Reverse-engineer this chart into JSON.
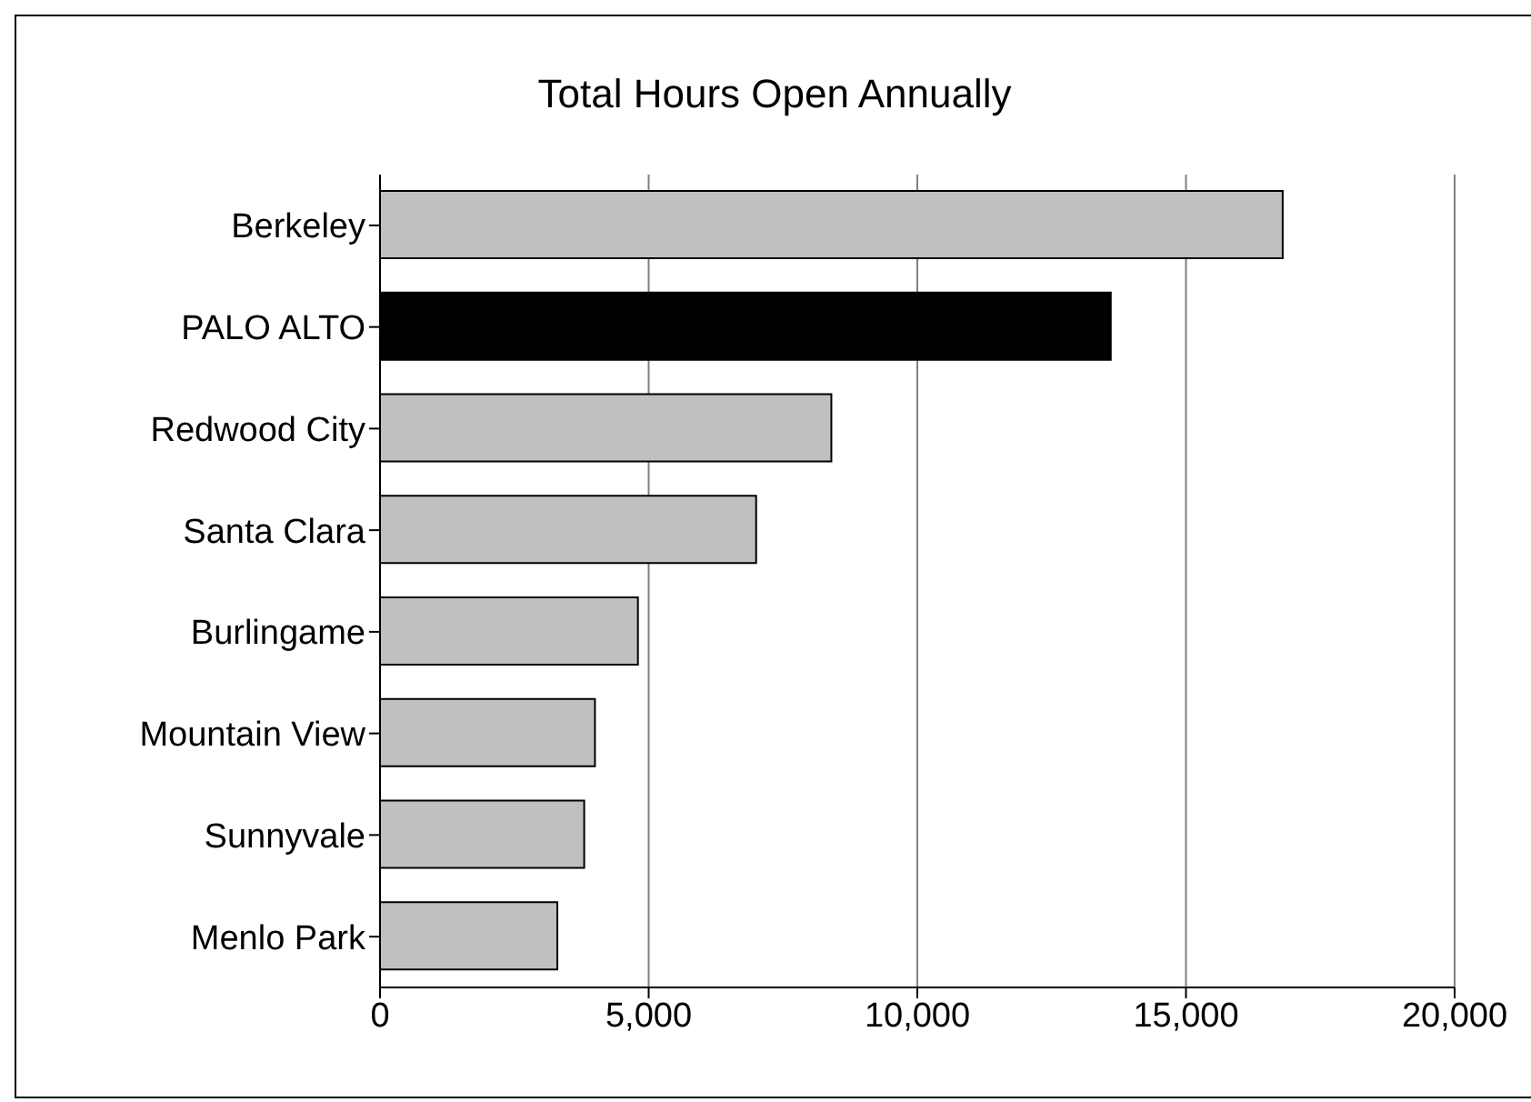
{
  "chart_data": {
    "type": "bar",
    "orientation": "horizontal",
    "title": "Total Hours Open Annually",
    "categories": [
      "Berkeley",
      "PALO ALTO",
      "Redwood City",
      "Santa Clara",
      "Burlingame",
      "Mountain View",
      "Sunnyvale",
      "Menlo Park"
    ],
    "values": [
      16800,
      13600,
      8400,
      7000,
      4800,
      4000,
      3800,
      3300
    ],
    "colors": [
      "#c0c0c0",
      "#000000",
      "#c0c0c0",
      "#c0c0c0",
      "#c0c0c0",
      "#c0c0c0",
      "#c0c0c0",
      "#c0c0c0"
    ],
    "xlim": [
      0,
      20000
    ],
    "xticks": [
      {
        "value": 0,
        "label": "0"
      },
      {
        "value": 5000,
        "label": "5,000"
      },
      {
        "value": 10000,
        "label": "10,000"
      },
      {
        "value": 15000,
        "label": "15,000"
      },
      {
        "value": 20000,
        "label": "20,000"
      }
    ],
    "grid": "x",
    "legend": false
  }
}
